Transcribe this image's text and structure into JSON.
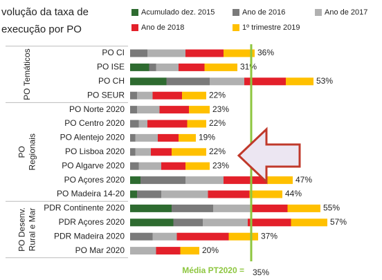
{
  "chart_data": {
    "type": "stacked-bar-horizontal",
    "title": [
      "volução da taxa de",
      "execução por PO"
    ],
    "categories": [
      "PO CI",
      "PO ISE",
      "PO CH",
      "PO SEUR",
      "PO Norte 2020",
      "PO Centro 2020",
      "PO Alentejo 2020",
      "PO Lisboa 2020",
      "PO Algarve 2020",
      "PO Açores 2020",
      "PO Madeira 14-20",
      "PDR Continente 2020",
      "PDR Açores 2020",
      "PDR Madeira 2020",
      "PO Mar 2020"
    ],
    "series": [
      {
        "name": "Acumulado dez. 2015",
        "color": "#2e6b30",
        "values": [
          0,
          5.5,
          10.5,
          0,
          0,
          0,
          0,
          0,
          0,
          3,
          2,
          12,
          12.5,
          0,
          0
        ]
      },
      {
        "name": "Ano de 2016",
        "color": "#7a7a7a",
        "values": [
          5,
          2,
          12.5,
          2,
          2,
          2.5,
          1.5,
          1.5,
          2.5,
          13,
          7,
          12,
          8.5,
          6.5,
          0
        ]
      },
      {
        "name": "Ano de 2017",
        "color": "#b0b0b0",
        "values": [
          11,
          6.5,
          10,
          4.5,
          6.5,
          2.5,
          6.5,
          4.5,
          6.5,
          11,
          13.5,
          11,
          13,
          7,
          7.5
        ]
      },
      {
        "name": "Ano de 2018",
        "color": "#e3202a",
        "values": [
          11,
          7.5,
          12,
          8.5,
          8.5,
          11.5,
          6,
          6,
          7,
          12.5,
          12,
          10.5,
          12.5,
          15,
          7
        ]
      },
      {
        "name": "1º trimestre 2019",
        "color": "#ffc000",
        "values": [
          9,
          9.5,
          8,
          7,
          6,
          5.5,
          5,
          10,
          7,
          7.5,
          9.5,
          9.5,
          10.5,
          8.5,
          5.5
        ]
      }
    ],
    "totals": [
      36,
      31,
      53,
      22,
      23,
      22,
      19,
      22,
      23,
      47,
      44,
      55,
      57,
      37,
      20
    ],
    "value_labels": [
      "36%",
      "31%",
      "53%",
      "22%",
      "23%",
      "22%",
      "19%",
      "22%",
      "23%",
      "47%",
      "44%",
      "55%",
      "57%",
      "37%",
      "20%"
    ],
    "groups": [
      {
        "lines": [
          "PO Temáticos"
        ],
        "first": 0,
        "last": 3
      },
      {
        "lines": [
          "PO",
          "Regionais"
        ],
        "first": 4,
        "last": 10
      },
      {
        "lines": [
          "PO Desenv.",
          "Rural e Mar"
        ],
        "first": 11,
        "last": 14
      }
    ],
    "average": {
      "label": "Média PT2020 =",
      "value": 35,
      "value_label": "35%",
      "color": "#8dc63f"
    }
  }
}
